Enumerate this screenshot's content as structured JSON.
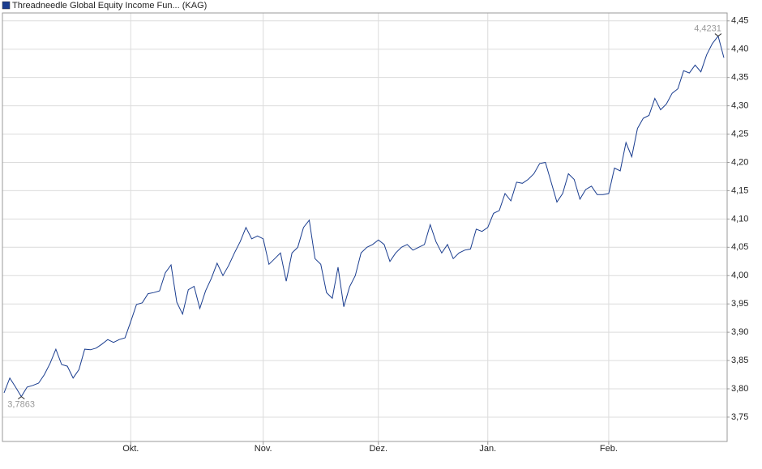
{
  "chart_data": {
    "type": "line",
    "categories": [
      null,
      null,
      null,
      null,
      null,
      null,
      null,
      null,
      null,
      null,
      null,
      null,
      null,
      null,
      null,
      null,
      null,
      null,
      null,
      null,
      null,
      null,
      "Okt.",
      null,
      null,
      null,
      null,
      null,
      null,
      null,
      null,
      null,
      null,
      null,
      null,
      null,
      null,
      null,
      null,
      null,
      null,
      null,
      null,
      null,
      null,
      "Nov.",
      null,
      null,
      null,
      null,
      null,
      null,
      null,
      null,
      null,
      null,
      null,
      null,
      null,
      null,
      null,
      null,
      null,
      null,
      null,
      "Dez.",
      null,
      null,
      null,
      null,
      null,
      null,
      null,
      null,
      null,
      null,
      null,
      null,
      null,
      null,
      null,
      null,
      null,
      null,
      "Jan.",
      null,
      null,
      null,
      null,
      null,
      null,
      null,
      null,
      null,
      null,
      null,
      null,
      null,
      null,
      null,
      null,
      null,
      null,
      null,
      null,
      "Feb.",
      null,
      null,
      null,
      null,
      null,
      null,
      null,
      null,
      null,
      null,
      null,
      null,
      null,
      null,
      null,
      null,
      null,
      null,
      null,
      null
    ],
    "series": [
      {
        "name": "Threadneedle Global Equity Income Fun...  (KAG)",
        "color": "#1a3d8f",
        "values": [
          3.793,
          3.819,
          3.803,
          3.7863,
          3.803,
          3.806,
          3.81,
          3.825,
          3.845,
          3.87,
          3.843,
          3.84,
          3.819,
          3.834,
          3.87,
          3.869,
          3.872,
          3.879,
          3.887,
          3.882,
          3.887,
          3.89,
          3.919,
          3.949,
          3.952,
          3.968,
          3.97,
          3.973,
          4.005,
          4.019,
          3.953,
          3.932,
          3.975,
          3.981,
          3.942,
          3.973,
          3.995,
          4.022,
          4.0,
          4.018,
          4.04,
          4.06,
          4.085,
          4.065,
          4.07,
          4.065,
          4.02,
          4.03,
          4.04,
          3.99,
          4.04,
          4.05,
          4.085,
          4.098,
          4.03,
          4.02,
          3.97,
          3.96,
          4.015,
          3.945,
          3.98,
          4.0,
          4.04,
          4.05,
          4.055,
          4.063,
          4.055,
          4.025,
          4.04,
          4.05,
          4.055,
          4.045,
          4.05,
          4.055,
          4.09,
          4.06,
          4.04,
          4.055,
          4.03,
          4.04,
          4.045,
          4.047,
          4.082,
          4.078,
          4.085,
          4.11,
          4.115,
          4.145,
          4.132,
          4.165,
          4.163,
          4.17,
          4.18,
          4.198,
          4.2,
          4.165,
          4.13,
          4.145,
          4.18,
          4.17,
          4.135,
          4.152,
          4.158,
          4.143,
          4.143,
          4.145,
          4.19,
          4.185,
          4.235,
          4.21,
          4.26,
          4.278,
          4.283,
          4.313,
          4.293,
          4.303,
          4.322,
          4.33,
          4.362,
          4.358,
          4.372,
          4.36,
          4.39,
          4.41,
          4.4231,
          4.385
        ],
        "value_labels": [
          null,
          null,
          null,
          "3,7863",
          null,
          null,
          null,
          null,
          null,
          null,
          null,
          null,
          null,
          null,
          null,
          null,
          null,
          null,
          null,
          null,
          null,
          null,
          null,
          null,
          null,
          null,
          null,
          null,
          null,
          null,
          null,
          null,
          null,
          null,
          null,
          null,
          null,
          null,
          null,
          null,
          null,
          null,
          null,
          null,
          null,
          null,
          null,
          null,
          null,
          null,
          null,
          null,
          null,
          null,
          null,
          null,
          null,
          null,
          null,
          null,
          null,
          null,
          null,
          null,
          null,
          null,
          null,
          null,
          null,
          null,
          null,
          null,
          null,
          null,
          null,
          null,
          null,
          null,
          null,
          null,
          null,
          null,
          null,
          null,
          null,
          null,
          null,
          null,
          null,
          null,
          null,
          null,
          null,
          null,
          null,
          null,
          null,
          null,
          null,
          null,
          null,
          null,
          null,
          null,
          null,
          null,
          null,
          null,
          null,
          null,
          null,
          null,
          null,
          null,
          null,
          null,
          null,
          null,
          null,
          null,
          null,
          null,
          null,
          null,
          "4,4231",
          null
        ]
      }
    ],
    "ylim": [
      3.707,
      4.464
    ],
    "yticks": [
      {
        "value": 3.75,
        "label": "3,75"
      },
      {
        "value": 3.8,
        "label": "3,80"
      },
      {
        "value": 3.85,
        "label": "3,85"
      },
      {
        "value": 3.9,
        "label": "3,90"
      },
      {
        "value": 3.95,
        "label": "3,95"
      },
      {
        "value": 4.0,
        "label": "4,00"
      },
      {
        "value": 4.05,
        "label": "4,05"
      },
      {
        "value": 4.1,
        "label": "4,10"
      },
      {
        "value": 4.15,
        "label": "4,15"
      },
      {
        "value": 4.2,
        "label": "4,20"
      },
      {
        "value": 4.25,
        "label": "4,25"
      },
      {
        "value": 4.3,
        "label": "4,30"
      },
      {
        "value": 4.35,
        "label": "4,35"
      },
      {
        "value": 4.4,
        "label": "4,40"
      },
      {
        "value": 4.45,
        "label": "4,45"
      }
    ],
    "grid": true
  }
}
